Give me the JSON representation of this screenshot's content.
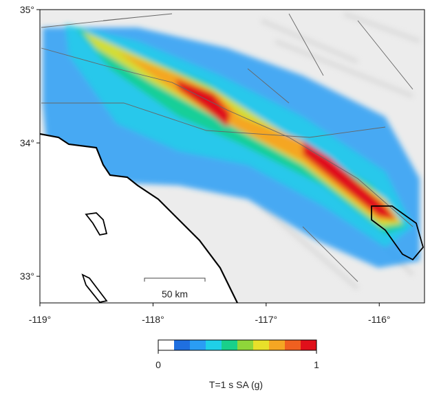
{
  "map": {
    "lon_range": [
      -119,
      -115.6
    ],
    "lat_range": [
      32.8,
      35
    ],
    "lon_ticks": [
      {
        "value": -119,
        "label": "-119°"
      },
      {
        "value": -118,
        "label": "-118°"
      },
      {
        "value": -117,
        "label": "-117°"
      },
      {
        "value": -116,
        "label": "-116°"
      }
    ],
    "lat_ticks": [
      {
        "value": 35,
        "label": "35°"
      },
      {
        "value": 34,
        "label": "34°"
      },
      {
        "value": 33,
        "label": "33°"
      }
    ],
    "scale_bar": {
      "label": "50 km"
    }
  },
  "colorbar": {
    "min": 0,
    "max": 1,
    "colors": [
      "#ffffff",
      "#1f6fe0",
      "#2a9df4",
      "#1fd0e8",
      "#19d08a",
      "#8fd63a",
      "#e8e02a",
      "#f5a623",
      "#f06020",
      "#e0101a"
    ],
    "label": "T=1 s SA (g)"
  }
}
